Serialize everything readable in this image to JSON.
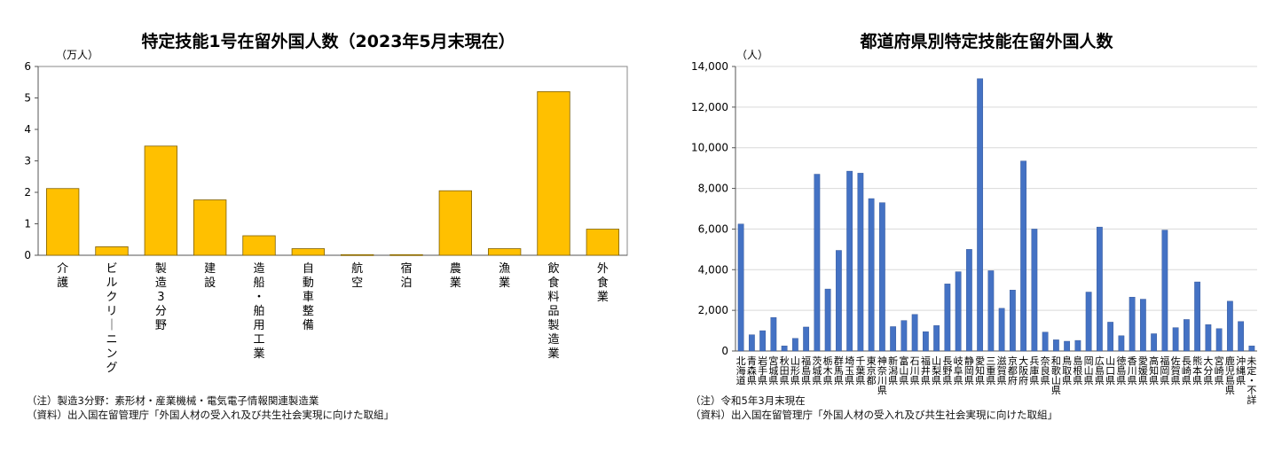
{
  "charts": [
    {
      "title": "特定技能1号在留外国人数（2023年5月末現在）",
      "unit": "（万人）",
      "note": "（注）製造3分野：素形材・産業機械・電気電子情報関連製造業",
      "source": "（資料）出入国在留管理庁「外国人材の受入れ及び共生社会実現に向けた取組」"
    },
    {
      "title": "都道府県別特定技能在留外国人数",
      "unit": "（人）",
      "note": "（注）令和5年3月末現在",
      "source": "（資料）出入国在留管理庁「外国人材の受入れ及び共生社会実現に向けた取組」"
    }
  ],
  "chart_data": [
    {
      "type": "bar",
      "title": "特定技能1号在留外国人数（2023年5月末現在）",
      "ylabel": "（万人）",
      "ylim": [
        0,
        6
      ],
      "yticks": [
        "0",
        "1",
        "2",
        "3",
        "4",
        "5",
        "6"
      ],
      "grid": false,
      "bar_color": "#FFC000",
      "categories": [
        "介護",
        "ビルクリーニング",
        "製造3分野",
        "建設",
        "造船・舶用工業",
        "自動車整備",
        "航空",
        "宿泊",
        "農業",
        "漁業",
        "飲食料品製造業",
        "外食業"
      ],
      "values": [
        2.12,
        0.27,
        3.47,
        1.76,
        0.62,
        0.21,
        0.02,
        0.02,
        2.05,
        0.21,
        5.2,
        0.83
      ]
    },
    {
      "type": "bar",
      "title": "都道府県別特定技能在留外国人数",
      "ylabel": "（人）",
      "ylim": [
        0,
        14000
      ],
      "yticks": [
        "0",
        "2,000",
        "4,000",
        "6,000",
        "8,000",
        "10,000",
        "12,000",
        "14,000"
      ],
      "grid": true,
      "bar_color": "#4472C4",
      "categories": [
        "北海道",
        "青森県",
        "岩手県",
        "宮城県",
        "秋田県",
        "山形県",
        "福島県",
        "茨城県",
        "栃木県",
        "群馬県",
        "埼玉県",
        "千葉県",
        "東京都",
        "神奈川県",
        "新潟県",
        "富山県",
        "石川県",
        "福井県",
        "山梨県",
        "長野県",
        "岐阜県",
        "静岡県",
        "愛知県",
        "三重県",
        "滋賀県",
        "京都府",
        "大阪府",
        "兵庫県",
        "奈良県",
        "和歌山県",
        "鳥取県",
        "島根県",
        "岡山県",
        "広島県",
        "山口県",
        "徳島県",
        "香川県",
        "愛媛県",
        "高知県",
        "福岡県",
        "佐賀県",
        "長崎県",
        "熊本県",
        "大分県",
        "宮崎県",
        "鹿児島県",
        "沖縄県",
        "未定・不詳"
      ],
      "values": [
        6250,
        800,
        1000,
        1650,
        250,
        620,
        1180,
        8700,
        3050,
        4950,
        8850,
        8750,
        7500,
        7300,
        1200,
        1500,
        1800,
        950,
        1250,
        3300,
        3900,
        5000,
        13400,
        3950,
        2100,
        3000,
        9350,
        6000,
        930,
        550,
        480,
        520,
        2900,
        6100,
        1420,
        750,
        2650,
        2550,
        850,
        5950,
        1150,
        1550,
        3400,
        1300,
        1100,
        2450,
        1450,
        250
      ]
    }
  ]
}
